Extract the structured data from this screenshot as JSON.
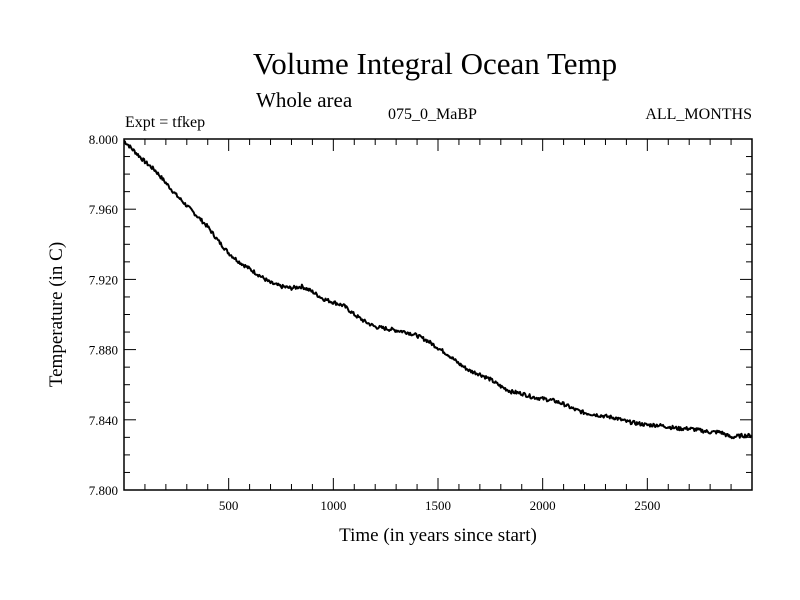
{
  "chart_data": {
    "type": "line",
    "title": "Volume Integral Ocean Temp",
    "subtitle": "Whole area",
    "annotations": {
      "left": "Expt = tfkep",
      "center": "075_0_MaBP",
      "right": "ALL_MONTHS"
    },
    "xlabel": "Time (in years since start)",
    "ylabel": "Temperature (in C)",
    "xlim": [
      0,
      3000
    ],
    "ylim": [
      7.8,
      8.0
    ],
    "x_ticks": [
      500,
      1000,
      1500,
      2000,
      2500
    ],
    "x_tick_labels": [
      "500",
      "1000",
      "1500",
      "2000",
      "2500"
    ],
    "y_ticks": [
      7.8,
      7.84,
      7.88,
      7.92,
      7.96,
      8.0
    ],
    "y_tick_labels": [
      "7.800",
      "7.840",
      "7.880",
      "7.920",
      "7.960",
      "8.000"
    ],
    "grid": false,
    "series": [
      {
        "color": "#000000",
        "x": [
          0,
          50,
          100,
          150,
          200,
          250,
          300,
          350,
          400,
          450,
          500,
          550,
          600,
          650,
          700,
          750,
          800,
          850,
          900,
          950,
          1000,
          1050,
          1100,
          1150,
          1200,
          1250,
          1300,
          1350,
          1400,
          1450,
          1500,
          1550,
          1600,
          1650,
          1700,
          1750,
          1800,
          1850,
          1900,
          1950,
          2000,
          2050,
          2100,
          2150,
          2200,
          2250,
          2300,
          2350,
          2400,
          2450,
          2500,
          2550,
          2600,
          2650,
          2700,
          2750,
          2800,
          2850,
          2900,
          2950,
          3000
        ],
        "values": [
          7.999,
          7.993,
          7.987,
          7.982,
          7.975,
          7.968,
          7.962,
          7.956,
          7.95,
          7.942,
          7.935,
          7.93,
          7.926,
          7.922,
          7.918,
          7.916,
          7.915,
          7.916,
          7.913,
          7.909,
          7.907,
          7.905,
          7.9,
          7.896,
          7.893,
          7.892,
          7.891,
          7.89,
          7.888,
          7.885,
          7.881,
          7.877,
          7.872,
          7.868,
          7.866,
          7.863,
          7.859,
          7.856,
          7.855,
          7.853,
          7.852,
          7.851,
          7.849,
          7.846,
          7.844,
          7.843,
          7.842,
          7.841,
          7.839,
          7.838,
          7.837,
          7.837,
          7.836,
          7.835,
          7.835,
          7.834,
          7.833,
          7.833,
          7.83,
          7.831,
          7.831
        ]
      }
    ]
  }
}
